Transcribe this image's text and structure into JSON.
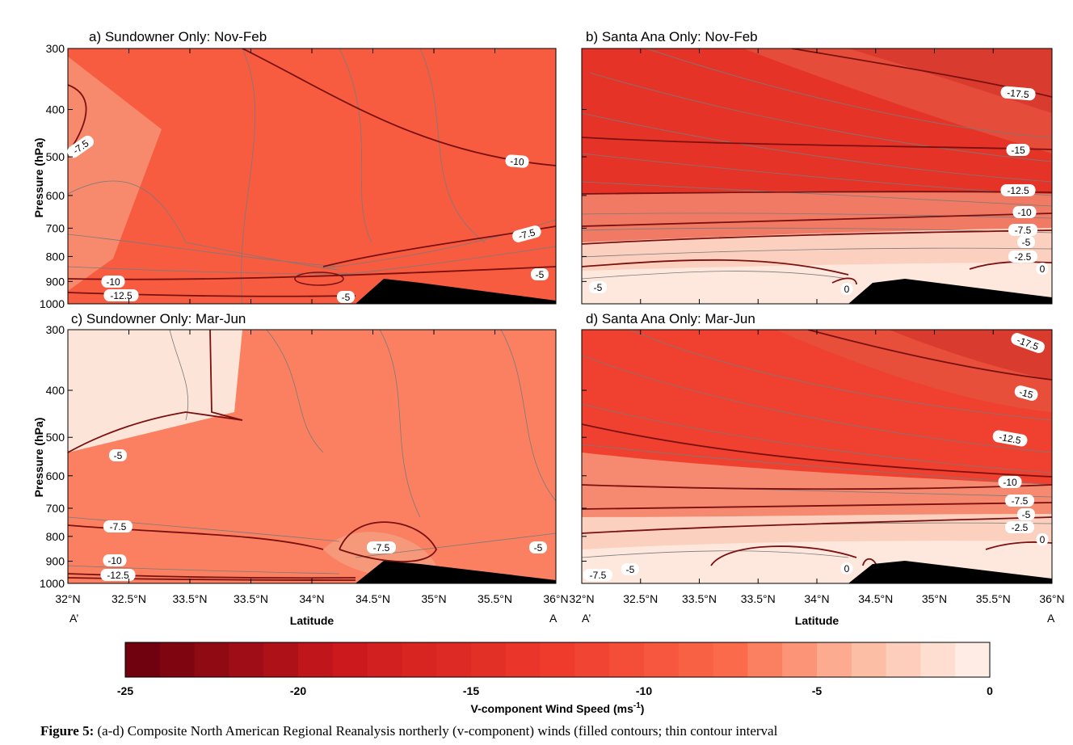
{
  "chart_data": {
    "type": "heatmap",
    "panels": [
      {
        "id": "a",
        "title": "a) Sundowner Only: Nov-Feb",
        "background_value": -9,
        "contour_labels": [
          "-7.5",
          "-10",
          "-7.5",
          "-5",
          "-10",
          "-12.5",
          "-5"
        ]
      },
      {
        "id": "b",
        "title": "b) Santa Ana Only: Nov-Feb",
        "background_value": -14,
        "contour_labels": [
          "-17.5",
          "-15",
          "-12.5",
          "-10",
          "-7.5",
          "-5",
          "-2.5",
          "0",
          "-5",
          "0"
        ]
      },
      {
        "id": "c",
        "title": "c) Sundowner Only: Mar-Jun",
        "background_value": -6.5,
        "contour_labels": [
          "-5",
          "-7.5",
          "-7.5",
          "-5",
          "-10",
          "-12.5"
        ]
      },
      {
        "id": "d",
        "title": "d) Santa Ana Only: Mar-Jun",
        "background_value": -12,
        "contour_labels": [
          "-17.5",
          "-15",
          "-12.5",
          "-10",
          "-7.5",
          "-5",
          "-2.5",
          "0",
          "-7.5",
          "-5",
          "0"
        ]
      }
    ],
    "ylabel": "Pressure (hPa)",
    "xlabel": "Latitude",
    "y_ticks": [
      "300",
      "400",
      "500",
      "600",
      "700",
      "800",
      "900",
      "1000"
    ],
    "x_ticks": [
      "32°N",
      "32.5°N",
      "33.5°N",
      "33.5°N",
      "34°N",
      "34.5°N",
      "35°N",
      "35.5°N",
      "36°N"
    ],
    "x_end_labels": [
      "A’",
      "A"
    ],
    "colorbar": {
      "label": "V-component Wind Speed (ms",
      "label_sup": "-1",
      "label_close": ")",
      "ticks": [
        "-25",
        "-20",
        "-15",
        "-10",
        "-5",
        "0"
      ],
      "range": [
        -25,
        0
      ],
      "step": 1
    }
  },
  "caption": {
    "lead": "Figure 5:",
    "text": " (a-d) Composite North American Regional Reanalysis northerly (v-component) winds (filled contours; thin contour interval"
  }
}
